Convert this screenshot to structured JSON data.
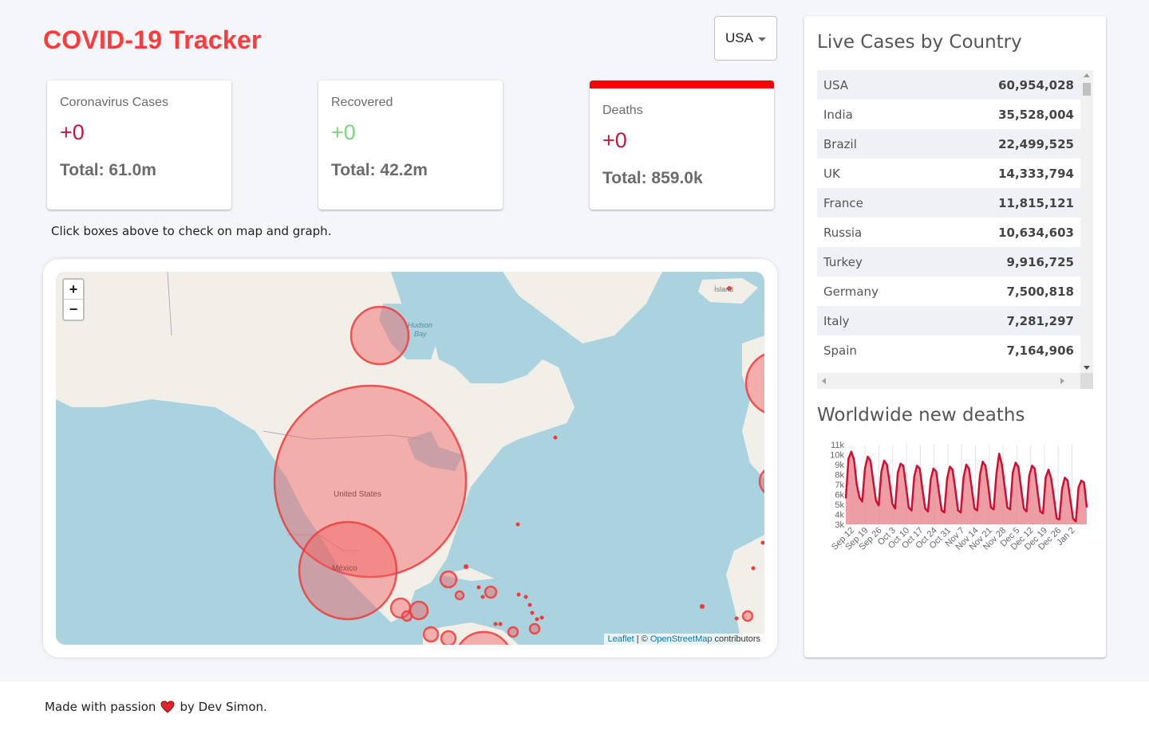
{
  "app": {
    "title": "COVID-19 Tracker"
  },
  "country_select": {
    "value": "USA"
  },
  "info_boxes": {
    "cases": {
      "title": "Coronavirus Cases",
      "today": "+0",
      "total": "Total: 61.0m"
    },
    "recovered": {
      "title": "Recovered",
      "today": "+0",
      "total": "Total: 42.2m"
    },
    "deaths": {
      "title": "Deaths",
      "today": "+0",
      "total": "Total: 859.0k"
    }
  },
  "hint": "Click boxes above to check on map and graph.",
  "map": {
    "zoom_in": "+",
    "zoom_out": "−",
    "attribution_leaflet": "Leaflet",
    "attribution_sep": " | © ",
    "attribution_osm": "OpenStreetMap",
    "attribution_rest": " contributors",
    "labels": {
      "us": "United States",
      "mx": "México",
      "hudson": "Hudson",
      "bay": "Bay",
      "iceland": "Ísland"
    }
  },
  "sidebar": {
    "title": "Live Cases by Country",
    "countries": [
      {
        "name": "USA",
        "cases": "60,954,028"
      },
      {
        "name": "India",
        "cases": "35,528,004"
      },
      {
        "name": "Brazil",
        "cases": "22,499,525"
      },
      {
        "name": "UK",
        "cases": "14,333,794"
      },
      {
        "name": "France",
        "cases": "11,815,121"
      },
      {
        "name": "Russia",
        "cases": "10,634,603"
      },
      {
        "name": "Turkey",
        "cases": "9,916,725"
      },
      {
        "name": "Germany",
        "cases": "7,500,818"
      },
      {
        "name": "Italy",
        "cases": "7,281,297"
      },
      {
        "name": "Spain",
        "cases": "7,164,906"
      }
    ],
    "chart_title": "Worldwide new deaths"
  },
  "chart_data": {
    "type": "area",
    "title": "Worldwide new deaths",
    "xlabel": "",
    "ylabel": "",
    "ylim": [
      3000,
      11000
    ],
    "yticks": [
      "3k",
      "4k",
      "5k",
      "6k",
      "7k",
      "8k",
      "9k",
      "10k",
      "11k"
    ],
    "xticks": [
      "Sep 12",
      "Sep 19",
      "Sep 26",
      "Oct 3",
      "Oct 10",
      "Oct 17",
      "Oct 24",
      "Oct 31",
      "Nov 7",
      "Nov 14",
      "Nov 21",
      "Nov 28",
      "Dec 5",
      "Dec 12",
      "Dec 19",
      "Dec 26",
      "Jan 2"
    ],
    "series": [
      {
        "values": [
          5600,
          9600,
          10300,
          9500,
          7000,
          5700,
          5300,
          8600,
          9800,
          9400,
          7400,
          5400,
          4900,
          8300,
          9400,
          9000,
          7200,
          5100,
          4600,
          8200,
          9100,
          8900,
          6800,
          4700,
          4400,
          7800,
          8900,
          8600,
          6500,
          4600,
          4300,
          7500,
          8600,
          8300,
          6300,
          4400,
          4200,
          7600,
          8800,
          8500,
          6500,
          4400,
          4200,
          7700,
          9000,
          8600,
          6600,
          4600,
          4400,
          8000,
          9300,
          8900,
          6900,
          4700,
          4500,
          8100,
          10100,
          9000,
          6900,
          4700,
          4500,
          8200,
          9200,
          8800,
          6700,
          4600,
          4300,
          7900,
          8900,
          8600,
          6400,
          4300,
          4100,
          7700,
          8500,
          7600,
          5700,
          3600,
          3500,
          6600,
          7700,
          7400,
          5500,
          3600,
          3300,
          6700,
          7400,
          7200,
          4700
        ]
      }
    ],
    "colors": {
      "line": "#cc1034",
      "fill": "#e8868f"
    }
  },
  "footer": {
    "text_before": "Made with passion",
    "text_after": "by Dev Simon."
  }
}
